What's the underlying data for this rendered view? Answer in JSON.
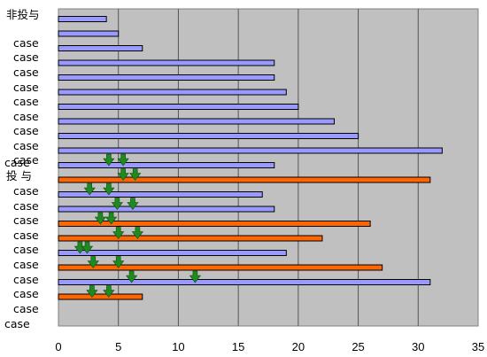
{
  "chart_data": {
    "type": "bar",
    "orientation": "horizontal",
    "xlim": [
      0,
      35
    ],
    "xticks": [
      0,
      5,
      10,
      15,
      20,
      25,
      30,
      35
    ],
    "grid": "vertical",
    "group_labels": [
      "非投与",
      "投 与"
    ],
    "row_labels": [
      "case",
      "case",
      "case",
      "case",
      "case",
      "case",
      "case",
      "case",
      "case",
      "case",
      "case",
      "case",
      "case",
      "case",
      "case",
      "case",
      "case",
      "case",
      "case",
      "case"
    ],
    "series": [
      {
        "color": "#9999ff",
        "values": [
          4,
          5,
          7,
          18,
          18,
          19,
          20,
          23,
          25,
          32,
          18,
          null,
          17,
          18,
          null,
          null,
          19,
          null,
          31,
          null
        ]
      },
      {
        "color": "#ff6600",
        "values": [
          null,
          null,
          null,
          null,
          null,
          null,
          null,
          null,
          null,
          null,
          null,
          31,
          null,
          null,
          26,
          22,
          null,
          27,
          null,
          7
        ]
      }
    ],
    "markers": {
      "color": "#1f8a1f",
      "points": [
        {
          "row": 10,
          "x": [
            4.2,
            5.4
          ]
        },
        {
          "row": 11,
          "x": [
            5.4,
            6.4
          ]
        },
        {
          "row": 12,
          "x": [
            2.6,
            4.2
          ]
        },
        {
          "row": 13,
          "x": [
            4.9,
            6.2
          ]
        },
        {
          "row": 14,
          "x": [
            3.5,
            4.4
          ]
        },
        {
          "row": 15,
          "x": [
            5.0,
            6.6
          ]
        },
        {
          "row": 16,
          "x": [
            1.8,
            2.4
          ]
        },
        {
          "row": 17,
          "x": [
            2.9,
            5.0
          ]
        },
        {
          "row": 18,
          "x": [
            6.1,
            11.4
          ]
        },
        {
          "row": 19,
          "x": [
            2.8,
            4.2
          ]
        }
      ]
    }
  }
}
